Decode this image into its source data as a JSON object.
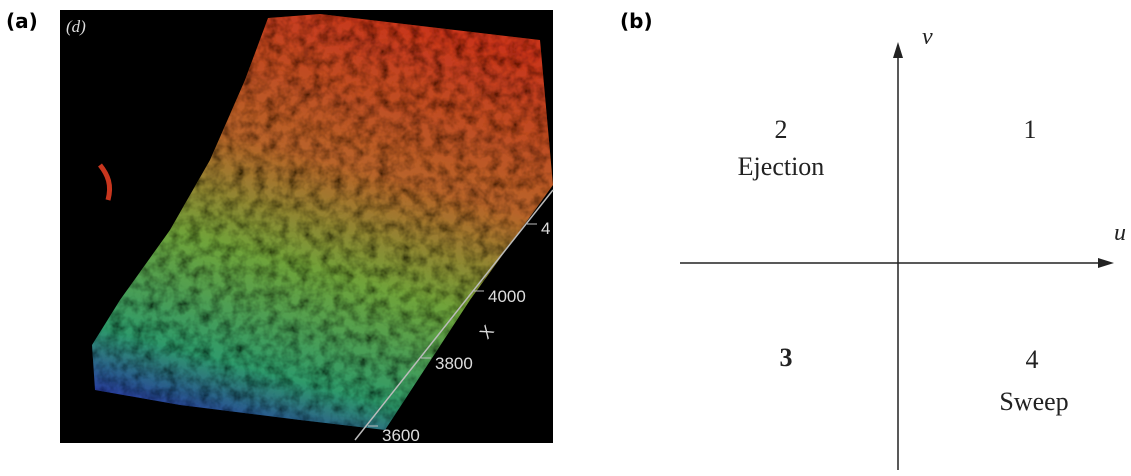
{
  "panel_a": {
    "label": "(a)",
    "inset_label": "(d)",
    "axis_title": "X",
    "ticks": [
      "4",
      "4000",
      "3800",
      "3600"
    ]
  },
  "panel_b": {
    "label": "(b)",
    "axes": {
      "x": "u",
      "y": "v"
    },
    "quadrants": [
      {
        "number": "1"
      },
      {
        "number": "2",
        "name": "Ejection"
      },
      {
        "number": "3"
      },
      {
        "number": "4",
        "name": "Sweep"
      }
    ]
  }
}
